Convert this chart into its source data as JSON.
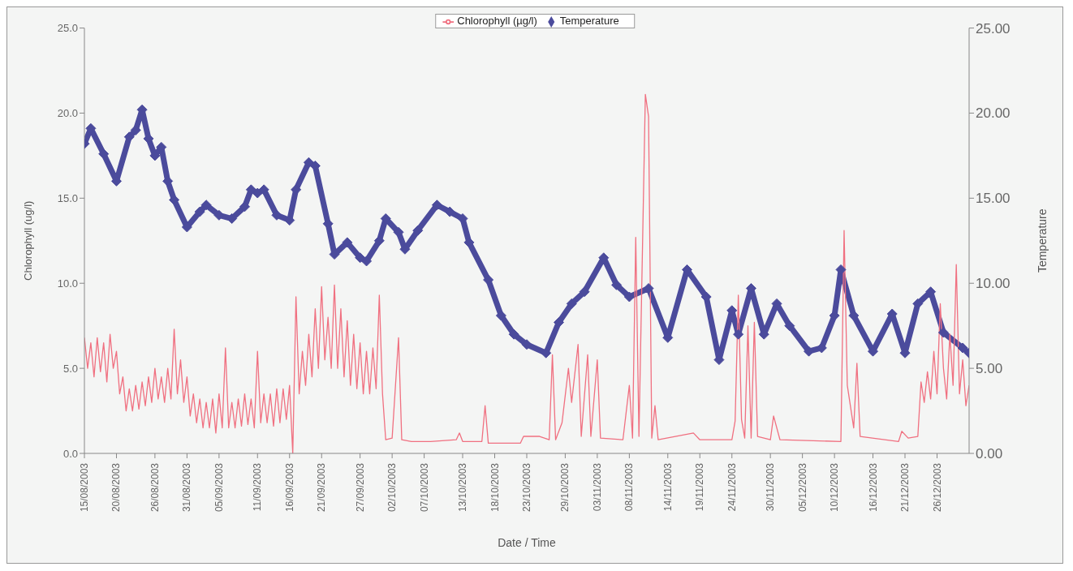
{
  "chart_data": {
    "type": "line",
    "xlabel": "Date / Time",
    "ylabel": "Chlorophyll (ug/l)",
    "y2label": "Temperature",
    "legend": "top",
    "grid": false,
    "xlim": [
      "2003-08-15",
      "2003-12-31"
    ],
    "xticks": [
      {
        "value": "2003-08-15",
        "label": "15/08/2003"
      },
      {
        "value": "2003-08-20",
        "label": "20/08/2003"
      },
      {
        "value": "2003-08-26",
        "label": "26/08/2003"
      },
      {
        "value": "2003-08-31",
        "label": "31/08/2003"
      },
      {
        "value": "2003-09-05",
        "label": "05/09/2003"
      },
      {
        "value": "2003-09-11",
        "label": "11/09/2003"
      },
      {
        "value": "2003-09-16",
        "label": "16/09/2003"
      },
      {
        "value": "2003-09-21",
        "label": "21/09/2003"
      },
      {
        "value": "2003-09-27",
        "label": "27/09/2003"
      },
      {
        "value": "2003-10-02",
        "label": "02/10/2003"
      },
      {
        "value": "2003-10-07",
        "label": "07/10/2003"
      },
      {
        "value": "2003-10-13",
        "label": "13/10/2003"
      },
      {
        "value": "2003-10-18",
        "label": "18/10/2003"
      },
      {
        "value": "2003-10-23",
        "label": "23/10/2003"
      },
      {
        "value": "2003-10-29",
        "label": "29/10/2003"
      },
      {
        "value": "2003-11-03",
        "label": "03/11/2003"
      },
      {
        "value": "2003-11-08",
        "label": "08/11/2003"
      },
      {
        "value": "2003-11-14",
        "label": "14/11/2003"
      },
      {
        "value": "2003-11-19",
        "label": "19/11/2003"
      },
      {
        "value": "2003-11-24",
        "label": "24/11/2003"
      },
      {
        "value": "2003-11-30",
        "label": "30/11/2003"
      },
      {
        "value": "2003-12-05",
        "label": "05/12/2003"
      },
      {
        "value": "2003-12-10",
        "label": "10/12/2003"
      },
      {
        "value": "2003-12-16",
        "label": "16/12/2003"
      },
      {
        "value": "2003-12-21",
        "label": "21/12/2003"
      },
      {
        "value": "2003-12-26",
        "label": "26/12/2003"
      }
    ],
    "ylim": [
      0,
      25
    ],
    "yticks": [
      {
        "value": 0,
        "label": "0.0"
      },
      {
        "value": 5,
        "label": "5.0"
      },
      {
        "value": 10,
        "label": "10.0"
      },
      {
        "value": 15,
        "label": "15.0"
      },
      {
        "value": 20,
        "label": "20.0"
      },
      {
        "value": 25,
        "label": "25.0"
      }
    ],
    "y2lim": [
      0,
      25
    ],
    "y2ticks": [
      {
        "value": 0,
        "label": "0.00"
      },
      {
        "value": 5,
        "label": "5.00"
      },
      {
        "value": 10,
        "label": "10.00"
      },
      {
        "value": 15,
        "label": "15.00"
      },
      {
        "value": 20,
        "label": "20.00"
      },
      {
        "value": 25,
        "label": "25.00"
      }
    ],
    "series": [
      {
        "name": "Chlorophyll (µg/l)",
        "color": "#f07080",
        "marker": "none",
        "x": [
          "2003-08-15T00:00",
          "2003-08-15T12:00",
          "2003-08-16T00:00",
          "2003-08-16T12:00",
          "2003-08-17T00:00",
          "2003-08-17T12:00",
          "2003-08-18T00:00",
          "2003-08-18T12:00",
          "2003-08-19T00:00",
          "2003-08-19T12:00",
          "2003-08-20T00:00",
          "2003-08-20T12:00",
          "2003-08-21T00:00",
          "2003-08-21T12:00",
          "2003-08-22T00:00",
          "2003-08-22T12:00",
          "2003-08-23T00:00",
          "2003-08-23T12:00",
          "2003-08-24T00:00",
          "2003-08-24T12:00",
          "2003-08-25T00:00",
          "2003-08-25T12:00",
          "2003-08-26T00:00",
          "2003-08-26T12:00",
          "2003-08-27T00:00",
          "2003-08-27T12:00",
          "2003-08-28T00:00",
          "2003-08-28T12:00",
          "2003-08-29T00:00",
          "2003-08-29T12:00",
          "2003-08-30T00:00",
          "2003-08-30T12:00",
          "2003-08-31T00:00",
          "2003-08-31T12:00",
          "2003-09-01T00:00",
          "2003-09-01T12:00",
          "2003-09-02T00:00",
          "2003-09-02T12:00",
          "2003-09-03T00:00",
          "2003-09-03T12:00",
          "2003-09-04T00:00",
          "2003-09-04T12:00",
          "2003-09-05T00:00",
          "2003-09-05T12:00",
          "2003-09-06T00:00",
          "2003-09-06T12:00",
          "2003-09-07T00:00",
          "2003-09-07T12:00",
          "2003-09-08T00:00",
          "2003-09-08T12:00",
          "2003-09-09T00:00",
          "2003-09-09T12:00",
          "2003-09-10T00:00",
          "2003-09-10T12:00",
          "2003-09-11T00:00",
          "2003-09-11T12:00",
          "2003-09-12T00:00",
          "2003-09-12T12:00",
          "2003-09-13T00:00",
          "2003-09-13T12:00",
          "2003-09-14T00:00",
          "2003-09-14T12:00",
          "2003-09-15T00:00",
          "2003-09-15T12:00",
          "2003-09-16T00:00",
          "2003-09-16T12:00",
          "2003-09-17T00:00",
          "2003-09-17T12:00",
          "2003-09-18T00:00",
          "2003-09-18T12:00",
          "2003-09-19T00:00",
          "2003-09-19T12:00",
          "2003-09-20T00:00",
          "2003-09-20T12:00",
          "2003-09-21T00:00",
          "2003-09-21T12:00",
          "2003-09-22T00:00",
          "2003-09-22T12:00",
          "2003-09-23T00:00",
          "2003-09-23T12:00",
          "2003-09-24T00:00",
          "2003-09-24T12:00",
          "2003-09-25T00:00",
          "2003-09-25T12:00",
          "2003-09-26T00:00",
          "2003-09-26T12:00",
          "2003-09-27T00:00",
          "2003-09-27T12:00",
          "2003-09-28T00:00",
          "2003-09-28T12:00",
          "2003-09-29T00:00",
          "2003-09-29T12:00",
          "2003-09-30T00:00",
          "2003-09-30T12:00",
          "2003-10-01T00:00",
          "2003-10-02T00:00",
          "2003-10-03T00:00",
          "2003-10-03T12:00",
          "2003-10-05T00:00",
          "2003-10-08T00:00",
          "2003-10-12T00:00",
          "2003-10-12T12:00",
          "2003-10-13T00:00",
          "2003-10-16T00:00",
          "2003-10-16T12:00",
          "2003-10-17T00:00",
          "2003-10-22T00:00",
          "2003-10-22T12:00",
          "2003-10-25T00:00",
          "2003-10-26T12:00",
          "2003-10-27T00:00",
          "2003-10-27T12:00",
          "2003-10-28T12:00",
          "2003-10-29T12:00",
          "2003-10-30T00:00",
          "2003-10-31T00:00",
          "2003-10-31T12:00",
          "2003-11-01T12:00",
          "2003-11-02T00:00",
          "2003-11-03T00:00",
          "2003-11-03T12:00",
          "2003-11-07T00:00",
          "2003-11-08T00:00",
          "2003-11-08T12:00",
          "2003-11-09T00:00",
          "2003-11-09T12:00",
          "2003-11-10T12:00",
          "2003-11-11T00:00",
          "2003-11-11T12:00",
          "2003-11-12T00:00",
          "2003-11-12T12:00",
          "2003-11-18T00:00",
          "2003-11-19T00:00",
          "2003-11-24T00:00",
          "2003-11-24T12:00",
          "2003-11-25T00:00",
          "2003-11-25T12:00",
          "2003-11-26T00:00",
          "2003-11-26T12:00",
          "2003-11-27T00:00",
          "2003-11-27T12:00",
          "2003-11-28T00:00",
          "2003-11-30T00:00",
          "2003-11-30T12:00",
          "2003-12-01T12:00",
          "2003-12-11T00:00",
          "2003-12-11T12:00",
          "2003-12-12T00:00",
          "2003-12-13T00:00",
          "2003-12-13T12:00",
          "2003-12-14T00:00",
          "2003-12-20T00:00",
          "2003-12-20T12:00",
          "2003-12-21T12:00",
          "2003-12-23T00:00",
          "2003-12-23T12:00",
          "2003-12-24T00:00",
          "2003-12-24T12:00",
          "2003-12-25T00:00",
          "2003-12-25T12:00",
          "2003-12-26T00:00",
          "2003-12-26T12:00",
          "2003-12-27T00:00",
          "2003-12-27T12:00",
          "2003-12-28T00:00",
          "2003-12-28T12:00",
          "2003-12-29T00:00",
          "2003-12-29T12:00",
          "2003-12-30T00:00",
          "2003-12-30T12:00",
          "2003-12-31T00:00"
        ],
        "values": [
          6.8,
          5.0,
          6.5,
          4.5,
          6.8,
          4.8,
          6.5,
          4.2,
          7.0,
          5.0,
          6.0,
          3.5,
          4.5,
          2.5,
          3.8,
          2.5,
          4.0,
          2.6,
          4.2,
          2.8,
          4.5,
          3.0,
          5.0,
          3.2,
          4.5,
          3.0,
          5.0,
          3.2,
          7.3,
          3.5,
          5.5,
          3.0,
          4.5,
          2.2,
          3.5,
          1.8,
          3.2,
          1.5,
          3.0,
          1.5,
          3.2,
          1.2,
          3.5,
          1.5,
          6.2,
          1.5,
          3.0,
          1.5,
          3.2,
          1.6,
          3.5,
          1.7,
          3.2,
          1.5,
          6.0,
          1.8,
          3.5,
          1.8,
          3.5,
          1.6,
          3.8,
          1.8,
          3.8,
          2.0,
          4.0,
          0.0,
          9.2,
          3.5,
          6.0,
          4.0,
          7.0,
          4.5,
          8.5,
          5.0,
          9.8,
          5.5,
          8.0,
          5.0,
          9.9,
          5.0,
          8.5,
          4.5,
          7.8,
          4.0,
          7.0,
          3.8,
          6.5,
          3.5,
          6.0,
          3.5,
          6.2,
          3.8,
          9.3,
          3.5,
          0.8,
          0.9,
          6.8,
          0.8,
          0.7,
          0.7,
          0.8,
          1.2,
          0.7,
          0.7,
          2.8,
          0.6,
          0.6,
          1.0,
          1.0,
          0.8,
          5.8,
          0.8,
          1.8,
          5.0,
          3.0,
          6.4,
          1.0,
          5.8,
          1.0,
          5.5,
          0.9,
          0.8,
          4.0,
          0.9,
          12.7,
          1.0,
          21.1,
          19.8,
          0.9,
          2.8,
          0.8,
          1.2,
          0.8,
          0.8,
          1.9,
          9.3,
          2.0,
          0.9,
          7.5,
          0.9,
          7.7,
          1.0,
          0.8,
          2.2,
          0.8,
          0.7,
          13.1,
          4.0,
          1.5,
          5.3,
          1.0,
          0.7,
          1.3,
          0.9,
          1.0,
          4.2,
          3.0,
          4.8,
          3.2,
          6.0,
          3.5,
          8.8,
          5.0,
          3.2,
          7.0,
          4.0,
          11.1,
          3.5,
          5.5,
          2.8,
          4.0
        ]
      },
      {
        "name": "Temperature",
        "color": "#4b4b9c",
        "axis": "y2",
        "marker": "diamond",
        "x": [
          "2003-08-15",
          "2003-08-16",
          "2003-08-18",
          "2003-08-20",
          "2003-08-22",
          "2003-08-23",
          "2003-08-24",
          "2003-08-25",
          "2003-08-26",
          "2003-08-27",
          "2003-08-28",
          "2003-08-29",
          "2003-08-31",
          "2003-09-02",
          "2003-09-03",
          "2003-09-05",
          "2003-09-07",
          "2003-09-09",
          "2003-09-10",
          "2003-09-11",
          "2003-09-12",
          "2003-09-14",
          "2003-09-16",
          "2003-09-17",
          "2003-09-19",
          "2003-09-20",
          "2003-09-22",
          "2003-09-23",
          "2003-09-25",
          "2003-09-27",
          "2003-09-28",
          "2003-09-30",
          "2003-10-01",
          "2003-10-03",
          "2003-10-04",
          "2003-10-06",
          "2003-10-09",
          "2003-10-11",
          "2003-10-13",
          "2003-10-14",
          "2003-10-17",
          "2003-10-19",
          "2003-10-21",
          "2003-10-23",
          "2003-10-26",
          "2003-10-28",
          "2003-10-30",
          "2003-11-01",
          "2003-11-04",
          "2003-11-06",
          "2003-11-08",
          "2003-11-11",
          "2003-11-14",
          "2003-11-17",
          "2003-11-20",
          "2003-11-22",
          "2003-11-24",
          "2003-11-25",
          "2003-11-27",
          "2003-11-29",
          "2003-12-01",
          "2003-12-03",
          "2003-12-06",
          "2003-12-08",
          "2003-12-10",
          "2003-12-11",
          "2003-12-13",
          "2003-12-16",
          "2003-12-19",
          "2003-12-21",
          "2003-12-23",
          "2003-12-25",
          "2003-12-27",
          "2003-12-30",
          "2003-12-31"
        ],
        "values": [
          18.2,
          19.1,
          17.6,
          16.0,
          18.6,
          19.0,
          20.2,
          18.5,
          17.5,
          18.0,
          16.0,
          14.9,
          13.3,
          14.2,
          14.6,
          14.0,
          13.8,
          14.5,
          15.5,
          15.3,
          15.5,
          14.0,
          13.7,
          15.5,
          17.1,
          16.9,
          13.5,
          11.7,
          12.4,
          11.5,
          11.3,
          12.5,
          13.8,
          13.0,
          12.0,
          13.1,
          14.6,
          14.2,
          13.8,
          12.4,
          10.2,
          8.1,
          7.0,
          6.4,
          5.9,
          7.7,
          8.8,
          9.5,
          11.5,
          9.9,
          9.2,
          9.7,
          6.8,
          10.8,
          9.2,
          5.5,
          8.4,
          7.0,
          9.7,
          7.0,
          8.8,
          7.5,
          6.0,
          6.2,
          8.1,
          10.8,
          8.1,
          6.0,
          8.2,
          5.9,
          8.8,
          9.5,
          7.1,
          6.2,
          5.9
        ]
      }
    ]
  }
}
